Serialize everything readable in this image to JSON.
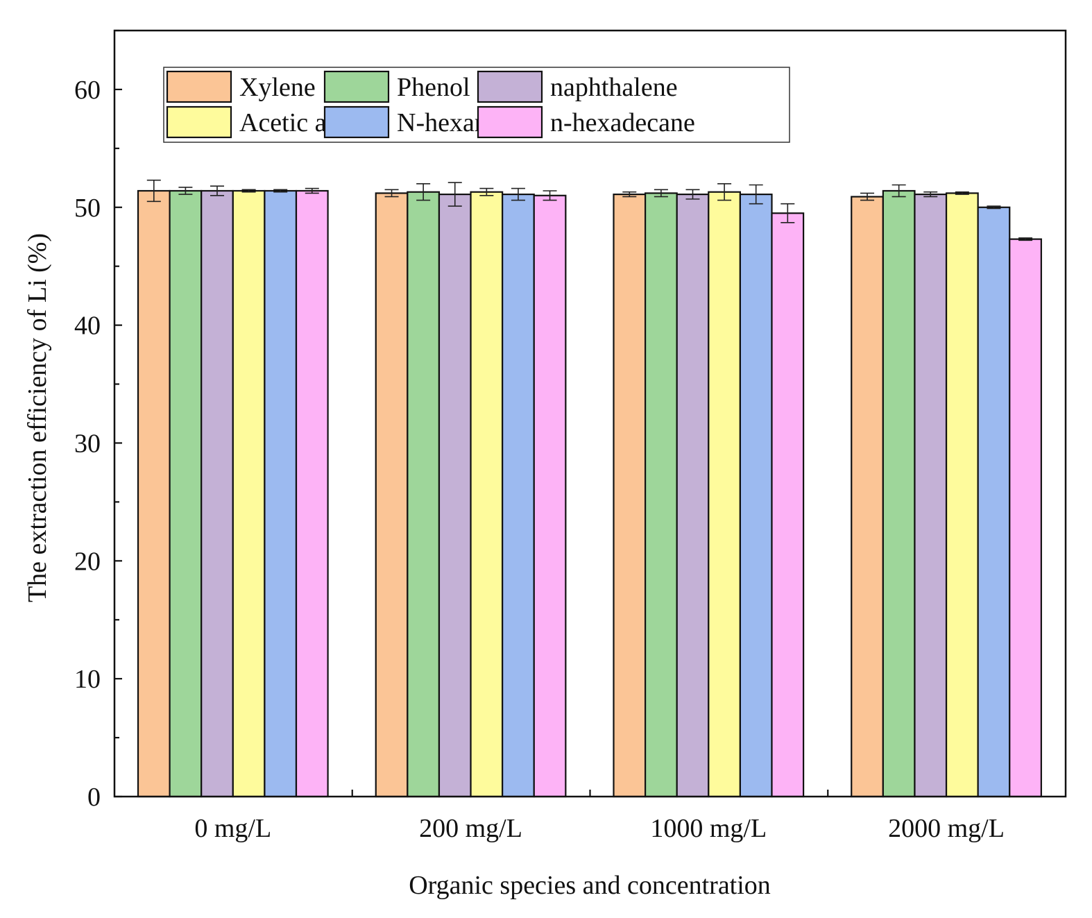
{
  "chart_data": {
    "type": "bar",
    "title": "",
    "xlabel": "Organic species and concentration",
    "ylabel": "The extraction efficiency of Li (%)",
    "ylim": [
      0,
      65
    ],
    "yticks": [
      "0",
      "10",
      "20",
      "30",
      "40",
      "50",
      "60"
    ],
    "grid": false,
    "legend_position": "top-left",
    "categories": [
      "0 mg/L",
      "200 mg/L",
      "1000 mg/L",
      "2000 mg/L"
    ],
    "series": [
      {
        "name": "Xylene",
        "color": "#fbc596",
        "values": [
          51.4,
          51.2,
          51.1,
          50.9
        ],
        "errors": [
          0.9,
          0.3,
          0.2,
          0.3
        ]
      },
      {
        "name": "Phenol",
        "color": "#9ed69a",
        "values": [
          51.4,
          51.3,
          51.2,
          51.4
        ],
        "errors": [
          0.3,
          0.7,
          0.3,
          0.5
        ]
      },
      {
        "name": "naphthalene",
        "color": "#c4b1d6",
        "values": [
          51.4,
          51.1,
          51.1,
          51.1
        ],
        "errors": [
          0.4,
          1.0,
          0.4,
          0.2
        ]
      },
      {
        "name": "Acetic acid",
        "color": "#fefb9c",
        "values": [
          51.4,
          51.3,
          51.3,
          51.2
        ],
        "errors": [
          0.1,
          0.3,
          0.7,
          0.1
        ]
      },
      {
        "name": "N-hexane",
        "color": "#9cbaf0",
        "values": [
          51.4,
          51.1,
          51.1,
          50.0
        ],
        "errors": [
          0.1,
          0.5,
          0.8,
          0.1
        ]
      },
      {
        "name": "n-hexadecane",
        "color": "#fdb3f6",
        "values": [
          51.4,
          51.0,
          49.5,
          47.3
        ],
        "errors": [
          0.2,
          0.4,
          0.8,
          0.1
        ]
      }
    ]
  }
}
